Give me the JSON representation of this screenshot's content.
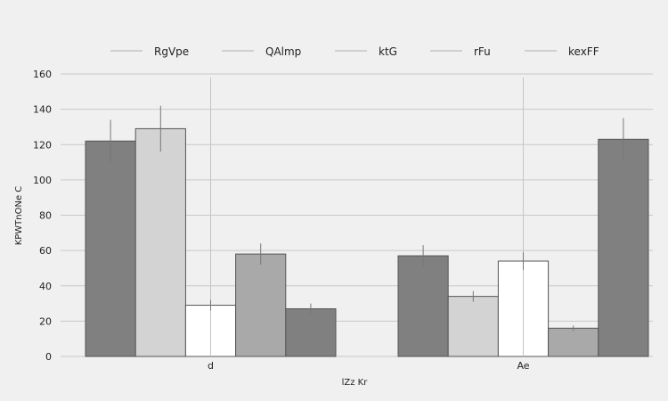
{
  "chart_data": {
    "type": "bar",
    "title": "",
    "xlabel": "lZz  Kr",
    "ylabel": "KPWTnONe C",
    "categories": [
      "d",
      "Ae"
    ],
    "ylim": [
      0,
      160
    ],
    "yticks": [
      0,
      20,
      40,
      60,
      80,
      100,
      120,
      140,
      160
    ],
    "grid": true,
    "legend_position": "top",
    "series": [
      {
        "name": "RgVpe",
        "color": "#808080",
        "values": [
          122,
          57
        ],
        "errors": [
          12,
          6
        ]
      },
      {
        "name": "QAlmp",
        "color": "#d3d3d3",
        "values": [
          129,
          34
        ],
        "errors": [
          13,
          3
        ]
      },
      {
        "name": "ktG",
        "color": "#ffffff",
        "values": [
          29,
          54
        ],
        "errors": [
          3,
          5
        ]
      },
      {
        "name": "rFu",
        "color": "#a9a9a9",
        "values": [
          58,
          16
        ],
        "errors": [
          6,
          1.5
        ]
      },
      {
        "name": "kexFF",
        "color": "#808080",
        "values": [
          27,
          123
        ],
        "errors": [
          3,
          12
        ]
      }
    ],
    "extra_vertical_lines": [
      {
        "category": "d",
        "series": "ktG",
        "from": 0,
        "to": 158
      },
      {
        "category": "Ae",
        "series": "ktG",
        "from": 0,
        "to": 158
      }
    ]
  }
}
